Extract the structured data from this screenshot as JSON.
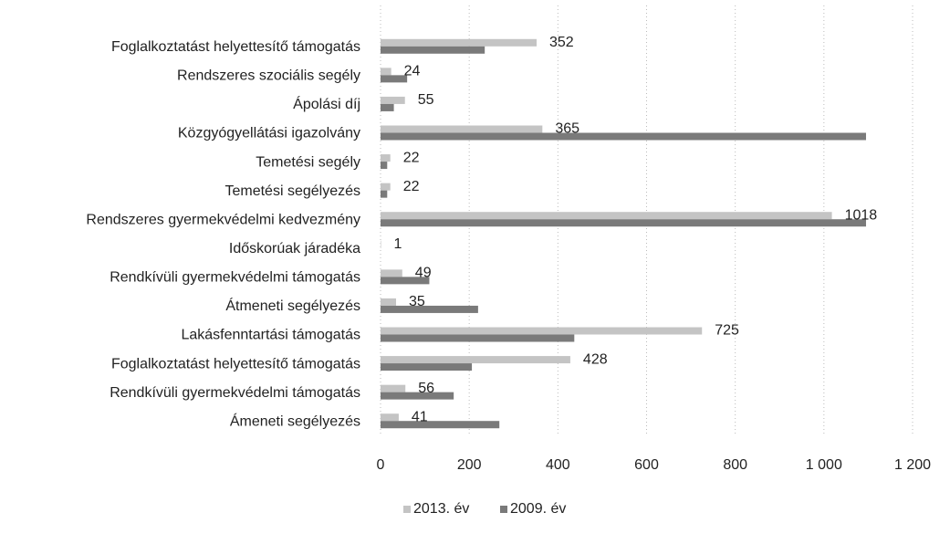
{
  "chart_data": {
    "type": "bar",
    "orientation": "horizontal",
    "categories": [
      "Foglalkoztatást helyettesítő támogatás",
      "Rendszeres szociális segély",
      "Ápolási díj",
      "Közgyógyellátási igazolvány",
      "Temetési segély",
      "Temetési segélyezés",
      "Rendszeres gyermekvédelmi kedvezmény",
      "Időskorúak járadéka",
      "Rendkívüli gyermekvédelmi támogatás",
      "Átmeneti segélyezés",
      "Lakásfenntartási támogatás",
      "Foglalkoztatást helyettesítő támogatás",
      "Rendkívüli gyermekvédelmi támogatás",
      "Ámeneti segélyezés"
    ],
    "series": [
      {
        "name": "2013. év",
        "color": "#c4c4c4",
        "values": [
          352,
          24,
          55,
          365,
          22,
          22,
          1018,
          1,
          49,
          35,
          725,
          428,
          56,
          41
        ]
      },
      {
        "name": "2009. év",
        "color": "#7a7a7a",
        "values": [
          235,
          60,
          30,
          1095,
          15,
          15,
          1095,
          0,
          110,
          220,
          437,
          206,
          165,
          268
        ]
      }
    ],
    "xlim": [
      0,
      1200
    ],
    "xticks": [
      0,
      200,
      400,
      600,
      800,
      {
        "value": 1000,
        "label": "1 000"
      },
      {
        "value": 1200,
        "label": "1 200"
      }
    ],
    "grid": true,
    "legend": "bottom"
  }
}
